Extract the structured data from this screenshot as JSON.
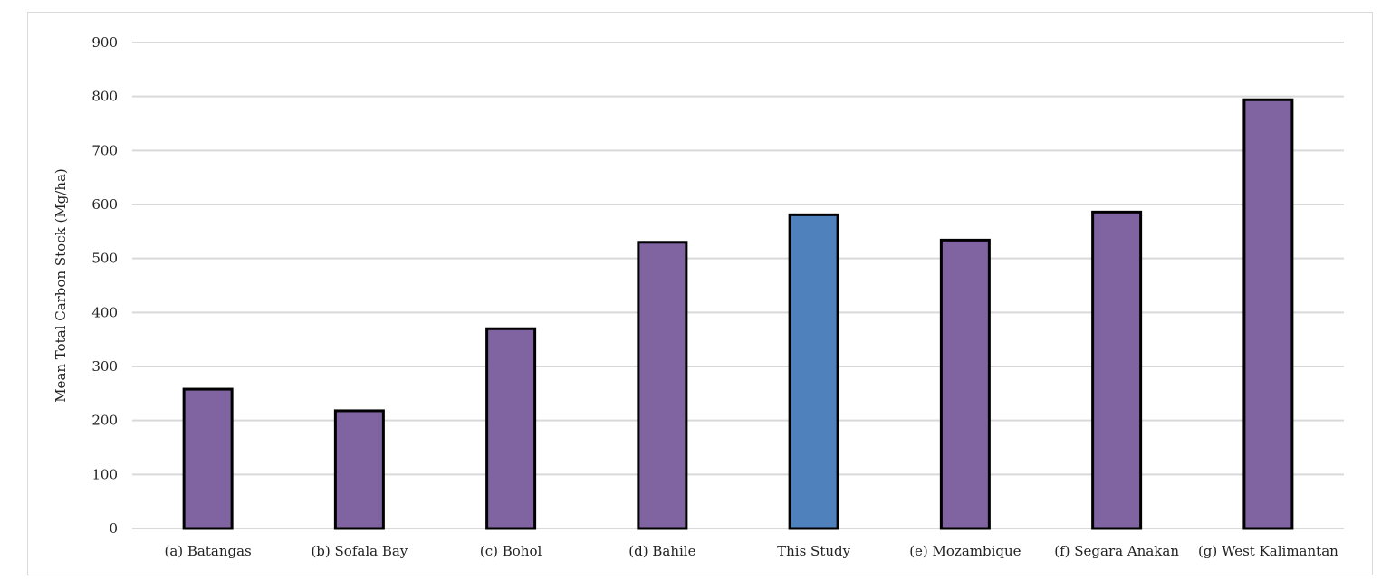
{
  "chart_data": {
    "type": "bar",
    "title": "",
    "xlabel": "",
    "ylabel": "Mean Total Carbon Stock (Mg/ha)",
    "ylim": [
      0,
      900
    ],
    "yticks": [
      0,
      100,
      200,
      300,
      400,
      500,
      600,
      700,
      800,
      900
    ],
    "grid": true,
    "legend": "none",
    "categories": [
      "(a) Batangas",
      "(b) Sofala Bay",
      "(c) Bohol",
      "(d) Bahile",
      "This Study",
      "(e) Mozambique",
      "(f) Segara Anakan",
      "(g) West Kalimantan"
    ],
    "values": [
      258,
      218,
      370,
      530,
      581,
      534,
      586,
      794
    ],
    "colors": {
      "default_bar": "#8064a2",
      "highlight_bar": "#4f81bd",
      "bar_outline": "#000000",
      "grid": "#d9d9d9",
      "text": "#222222"
    },
    "highlight_category": "This Study"
  }
}
